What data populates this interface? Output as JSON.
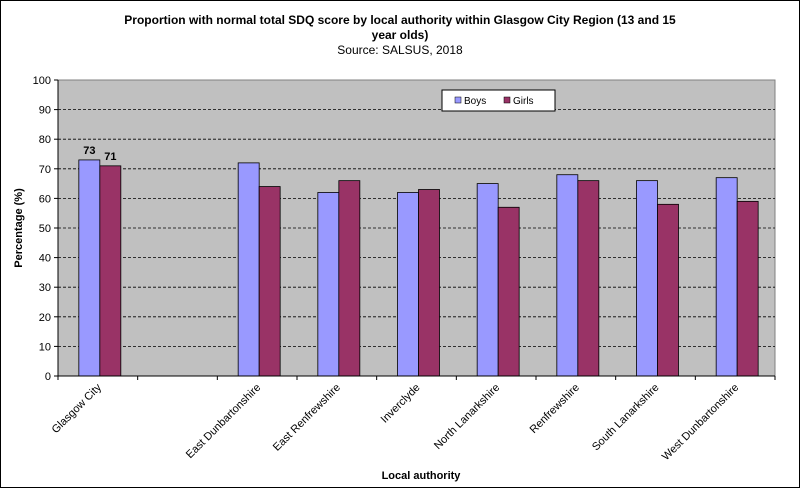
{
  "chart_data": {
    "type": "bar",
    "title_line1": "Proportion with normal total  SDQ score by local authority within Glasgow City Region (13 and 15",
    "title_line2": "year olds)",
    "subtitle": "Source:  SALSUS, 2018",
    "xlabel": "Local authority",
    "ylabel": "Percentage (%)",
    "ylim": [
      0,
      100
    ],
    "yticks": [
      "0",
      "10",
      "20",
      "30",
      "40",
      "50",
      "60",
      "70",
      "80",
      "90",
      "100"
    ],
    "grid": true,
    "legend_position": "top-center",
    "categories": [
      "Glasgow City",
      "",
      "East Dunbartonshire",
      "East Renfrewshire",
      "Inverclyde",
      "North Lanarkshire",
      "Renfrewshire",
      "South Lanarkshire",
      "West Dunbartonshire"
    ],
    "series": [
      {
        "name": "Boys",
        "color": "#9999ff",
        "values": [
          73,
          null,
          72,
          62,
          62,
          65,
          68,
          66,
          67
        ]
      },
      {
        "name": "Girls",
        "color": "#993366",
        "values": [
          71,
          null,
          64,
          66,
          63,
          57,
          66,
          58,
          59
        ]
      }
    ],
    "data_labels": [
      "73",
      "71"
    ],
    "plot_background": "#c0c0c0"
  }
}
